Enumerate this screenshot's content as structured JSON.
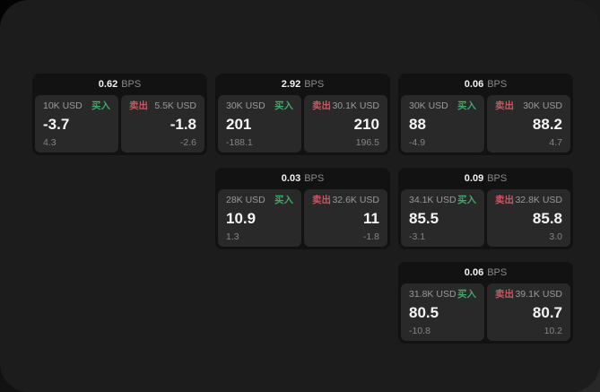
{
  "labels": {
    "bps": "BPS",
    "buy": "买入",
    "sell": "卖出"
  },
  "colors": {
    "buy": "#40a868",
    "sell": "#ce5564",
    "frame_bg": "#1c1c1c",
    "card_bg": "#121212",
    "panel_bg": "#292929"
  },
  "cards": [
    {
      "bps": "0.62",
      "buy": {
        "amount": "10K USD",
        "value": "-3.7",
        "delta": "4.3"
      },
      "sell": {
        "amount": "5.5K USD",
        "value": "-1.8",
        "delta": "-2.6"
      }
    },
    {
      "bps": "2.92",
      "buy": {
        "amount": "30K USD",
        "value": "201",
        "delta": "-188.1"
      },
      "sell": {
        "amount": "30.1K USD",
        "value": "210",
        "delta": "196.5"
      }
    },
    {
      "bps": "0.06",
      "buy": {
        "amount": "30K USD",
        "value": "88",
        "delta": "-4.9"
      },
      "sell": {
        "amount": "30K USD",
        "value": "88.2",
        "delta": "4.7"
      }
    },
    {
      "bps": "0.03",
      "buy": {
        "amount": "28K USD",
        "value": "10.9",
        "delta": "1.3"
      },
      "sell": {
        "amount": "32.6K USD",
        "value": "11",
        "delta": "-1.8"
      }
    },
    {
      "bps": "0.09",
      "buy": {
        "amount": "34.1K USD",
        "value": "85.5",
        "delta": "-3.1"
      },
      "sell": {
        "amount": "32.8K USD",
        "value": "85.8",
        "delta": "3.0"
      }
    },
    {
      "bps": "0.06",
      "buy": {
        "amount": "31.8K USD",
        "value": "80.5",
        "delta": "-10.8"
      },
      "sell": {
        "amount": "39.1K USD",
        "value": "80.7",
        "delta": "10.2"
      }
    }
  ]
}
